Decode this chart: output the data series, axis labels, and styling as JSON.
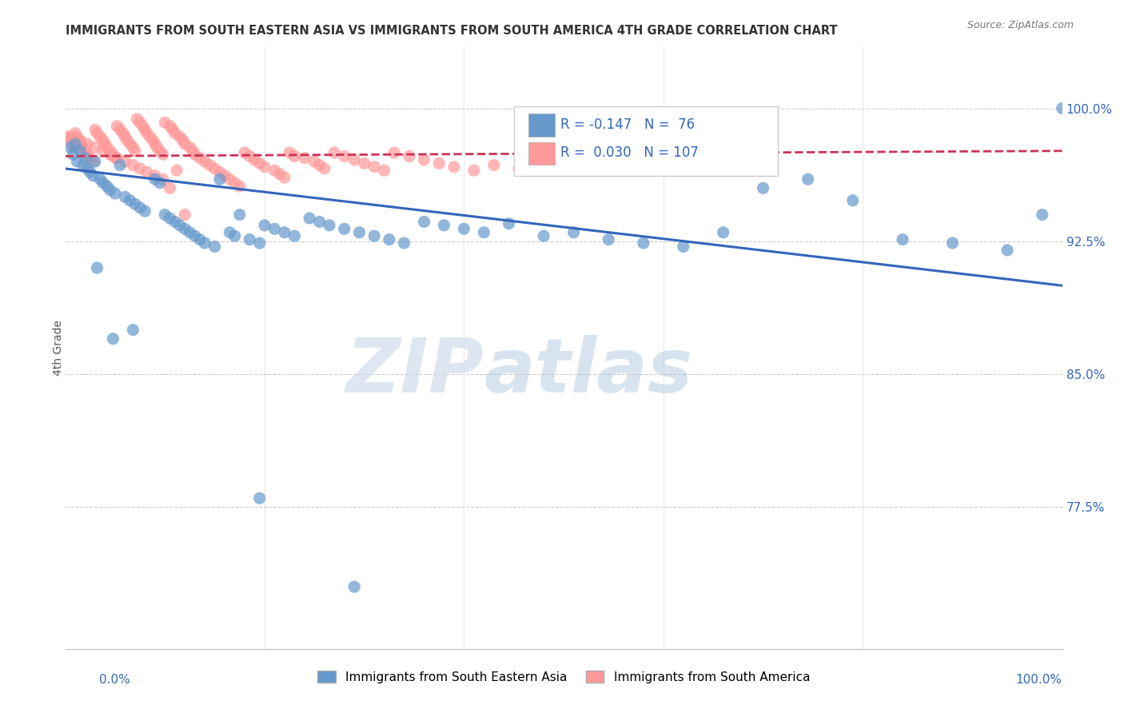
{
  "title": "IMMIGRANTS FROM SOUTH EASTERN ASIA VS IMMIGRANTS FROM SOUTH AMERICA 4TH GRADE CORRELATION CHART",
  "source": "Source: ZipAtlas.com",
  "ylabel": "4th Grade",
  "legend_blue_r": "R = -0.147",
  "legend_blue_n": "N =  76",
  "legend_pink_r": "R =  0.030",
  "legend_pink_n": "N = 107",
  "legend_label_blue": "Immigrants from South Eastern Asia",
  "legend_label_pink": "Immigrants from South America",
  "watermark_zip": "ZIP",
  "watermark_atlas": "atlas",
  "blue_color": "#6699CC",
  "pink_color": "#FF9999",
  "blue_line_color": "#3366BB",
  "pink_line_color": "#CC3355",
  "blue_line_x": [
    0.0,
    1.0
  ],
  "blue_line_y": [
    0.966,
    0.9
  ],
  "pink_line_x": [
    0.0,
    1.0
  ],
  "pink_line_y": [
    0.973,
    0.976
  ],
  "xlim": [
    0.0,
    1.0
  ],
  "ylim": [
    0.695,
    1.035
  ],
  "ytick_vals": [
    1.0,
    0.925,
    0.85,
    0.775
  ],
  "ytick_labels": [
    "100.0%",
    "92.5%",
    "85.0%",
    "77.5%"
  ],
  "blue_x": [
    0.005,
    0.008,
    0.01,
    0.012,
    0.015,
    0.018,
    0.02,
    0.022,
    0.025,
    0.028,
    0.03,
    0.035,
    0.038,
    0.042,
    0.045,
    0.05,
    0.055,
    0.06,
    0.065,
    0.07,
    0.075,
    0.08,
    0.09,
    0.095,
    0.1,
    0.105,
    0.11,
    0.115,
    0.12,
    0.125,
    0.13,
    0.135,
    0.14,
    0.15,
    0.155,
    0.165,
    0.17,
    0.175,
    0.185,
    0.195,
    0.2,
    0.21,
    0.22,
    0.23,
    0.245,
    0.255,
    0.265,
    0.28,
    0.295,
    0.31,
    0.325,
    0.34,
    0.36,
    0.38,
    0.4,
    0.42,
    0.445,
    0.48,
    0.51,
    0.545,
    0.58,
    0.62,
    0.66,
    0.7,
    0.745,
    0.79,
    0.84,
    0.89,
    0.945,
    0.98,
    1.0,
    0.048,
    0.032,
    0.068,
    0.195,
    0.29
  ],
  "blue_y": [
    0.978,
    0.974,
    0.98,
    0.97,
    0.976,
    0.968,
    0.972,
    0.966,
    0.964,
    0.962,
    0.97,
    0.96,
    0.958,
    0.956,
    0.954,
    0.952,
    0.968,
    0.95,
    0.948,
    0.946,
    0.944,
    0.942,
    0.96,
    0.958,
    0.94,
    0.938,
    0.936,
    0.934,
    0.932,
    0.93,
    0.928,
    0.926,
    0.924,
    0.922,
    0.96,
    0.93,
    0.928,
    0.94,
    0.926,
    0.924,
    0.934,
    0.932,
    0.93,
    0.928,
    0.938,
    0.936,
    0.934,
    0.932,
    0.93,
    0.928,
    0.926,
    0.924,
    0.936,
    0.934,
    0.932,
    0.93,
    0.935,
    0.928,
    0.93,
    0.926,
    0.924,
    0.922,
    0.93,
    0.955,
    0.96,
    0.948,
    0.926,
    0.924,
    0.92,
    0.94,
    1.0,
    0.87,
    0.91,
    0.875,
    0.78,
    0.73
  ],
  "pink_x": [
    0.003,
    0.005,
    0.007,
    0.009,
    0.01,
    0.012,
    0.014,
    0.016,
    0.018,
    0.02,
    0.022,
    0.025,
    0.028,
    0.03,
    0.032,
    0.035,
    0.038,
    0.04,
    0.042,
    0.045,
    0.048,
    0.05,
    0.052,
    0.055,
    0.058,
    0.06,
    0.062,
    0.065,
    0.068,
    0.07,
    0.072,
    0.075,
    0.078,
    0.08,
    0.082,
    0.085,
    0.088,
    0.09,
    0.092,
    0.095,
    0.098,
    0.1,
    0.105,
    0.108,
    0.11,
    0.115,
    0.118,
    0.12,
    0.125,
    0.128,
    0.13,
    0.135,
    0.14,
    0.145,
    0.15,
    0.155,
    0.16,
    0.165,
    0.17,
    0.175,
    0.18,
    0.185,
    0.19,
    0.195,
    0.2,
    0.21,
    0.215,
    0.22,
    0.225,
    0.23,
    0.24,
    0.25,
    0.255,
    0.26,
    0.27,
    0.28,
    0.29,
    0.3,
    0.31,
    0.32,
    0.33,
    0.345,
    0.36,
    0.375,
    0.39,
    0.41,
    0.43,
    0.455,
    0.48,
    0.51,
    0.54,
    0.005,
    0.015,
    0.022,
    0.03,
    0.038,
    0.045,
    0.052,
    0.06,
    0.068,
    0.075,
    0.082,
    0.09,
    0.098,
    0.105,
    0.112,
    0.12
  ],
  "pink_y": [
    0.984,
    0.982,
    0.98,
    0.978,
    0.986,
    0.984,
    0.982,
    0.98,
    0.978,
    0.976,
    0.974,
    0.972,
    0.97,
    0.988,
    0.986,
    0.984,
    0.982,
    0.98,
    0.978,
    0.976,
    0.974,
    0.972,
    0.99,
    0.988,
    0.986,
    0.984,
    0.982,
    0.98,
    0.978,
    0.976,
    0.994,
    0.992,
    0.99,
    0.988,
    0.986,
    0.984,
    0.982,
    0.98,
    0.978,
    0.976,
    0.974,
    0.992,
    0.99,
    0.988,
    0.986,
    0.984,
    0.982,
    0.98,
    0.978,
    0.976,
    0.974,
    0.972,
    0.97,
    0.968,
    0.966,
    0.964,
    0.962,
    0.96,
    0.958,
    0.956,
    0.975,
    0.973,
    0.971,
    0.969,
    0.967,
    0.965,
    0.963,
    0.961,
    0.975,
    0.973,
    0.972,
    0.97,
    0.968,
    0.966,
    0.975,
    0.973,
    0.971,
    0.969,
    0.967,
    0.965,
    0.975,
    0.973,
    0.971,
    0.969,
    0.967,
    0.965,
    0.968,
    0.966,
    0.97,
    0.968,
    0.966,
    0.984,
    0.982,
    0.98,
    0.978,
    0.976,
    0.974,
    0.972,
    0.97,
    0.968,
    0.966,
    0.964,
    0.962,
    0.96,
    0.955,
    0.965,
    0.94
  ]
}
